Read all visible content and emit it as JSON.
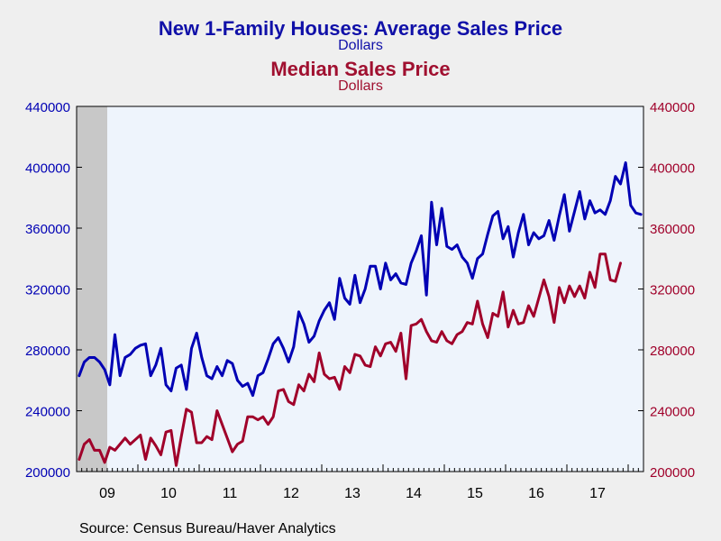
{
  "chart_data": {
    "type": "line",
    "title": "New 1-Family Houses: Average Sales Price",
    "title_units": "Dollars",
    "subtitle": "Median Sales Price",
    "subtitle_units": "Dollars",
    "source": "Source:  Census Bureau/Haver Analytics",
    "x_start": "2009-01",
    "year_labels": [
      "09",
      "10",
      "11",
      "12",
      "13",
      "14",
      "15",
      "16",
      "17"
    ],
    "yticks": [
      "200000",
      "240000",
      "280000",
      "320000",
      "360000",
      "400000",
      "440000"
    ],
    "ylim": [
      200000,
      440000
    ],
    "shaded_period": {
      "start": "2009-01",
      "end": "2009-06",
      "color": "#c8c8c8"
    },
    "grid": false,
    "plot_background": "#eef4fc",
    "series": [
      {
        "name": "New 1-Family Houses: Average Sales Price",
        "axis": "left",
        "color": "#0000b4",
        "values": [
          263000,
          272000,
          275000,
          275000,
          272000,
          267000,
          257000,
          290000,
          263000,
          275000,
          277000,
          281000,
          283000,
          284000,
          263000,
          270000,
          281000,
          257000,
          253000,
          268000,
          270000,
          254000,
          281000,
          291000,
          275000,
          263000,
          261000,
          269000,
          263000,
          273000,
          271000,
          260000,
          256000,
          258000,
          250000,
          263000,
          265000,
          274000,
          284000,
          288000,
          281000,
          272000,
          282000,
          305000,
          297000,
          285000,
          289000,
          299000,
          306000,
          311000,
          300000,
          327000,
          314000,
          310000,
          329000,
          311000,
          320000,
          335000,
          335000,
          320000,
          337000,
          326000,
          330000,
          324000,
          323000,
          337000,
          345000,
          355000,
          316000,
          377000,
          349000,
          373000,
          348000,
          346000,
          349000,
          341000,
          337000,
          327000,
          340000,
          343000,
          356000,
          368000,
          371000,
          353000,
          361000,
          341000,
          357000,
          369000,
          349000,
          357000,
          353000,
          355000,
          365000,
          352000,
          368000,
          382000,
          358000,
          371000,
          384000,
          366000,
          378000,
          370000,
          372000,
          369000,
          378000,
          394000,
          389000,
          403000,
          375000,
          370000,
          369000
        ]
      },
      {
        "name": "Median Sales Price",
        "axis": "right",
        "color": "#a0002a",
        "values": [
          208000,
          218000,
          221000,
          214000,
          214000,
          206000,
          216000,
          214000,
          218000,
          222000,
          218000,
          221000,
          224000,
          208000,
          222000,
          217000,
          211000,
          226000,
          227000,
          204000,
          223000,
          241000,
          239000,
          219000,
          219000,
          223000,
          221000,
          240000,
          231000,
          222000,
          213000,
          218000,
          220000,
          236000,
          236000,
          234000,
          236000,
          231000,
          236000,
          253000,
          254000,
          246000,
          244000,
          257000,
          253000,
          264000,
          259000,
          278000,
          264000,
          261000,
          262000,
          254000,
          269000,
          265000,
          277000,
          276000,
          270000,
          269000,
          282000,
          276000,
          284000,
          285000,
          279000,
          291000,
          261000,
          296000,
          297000,
          300000,
          292000,
          286000,
          285000,
          292000,
          286000,
          284000,
          290000,
          292000,
          298000,
          297000,
          312000,
          297000,
          288000,
          304000,
          302000,
          318000,
          295000,
          306000,
          297000,
          298000,
          309000,
          302000,
          314000,
          326000,
          315000,
          298000,
          321000,
          311000,
          322000,
          315000,
          322000,
          314000,
          331000,
          321000,
          343000,
          343000,
          326000,
          325000,
          337000
        ]
      }
    ]
  }
}
